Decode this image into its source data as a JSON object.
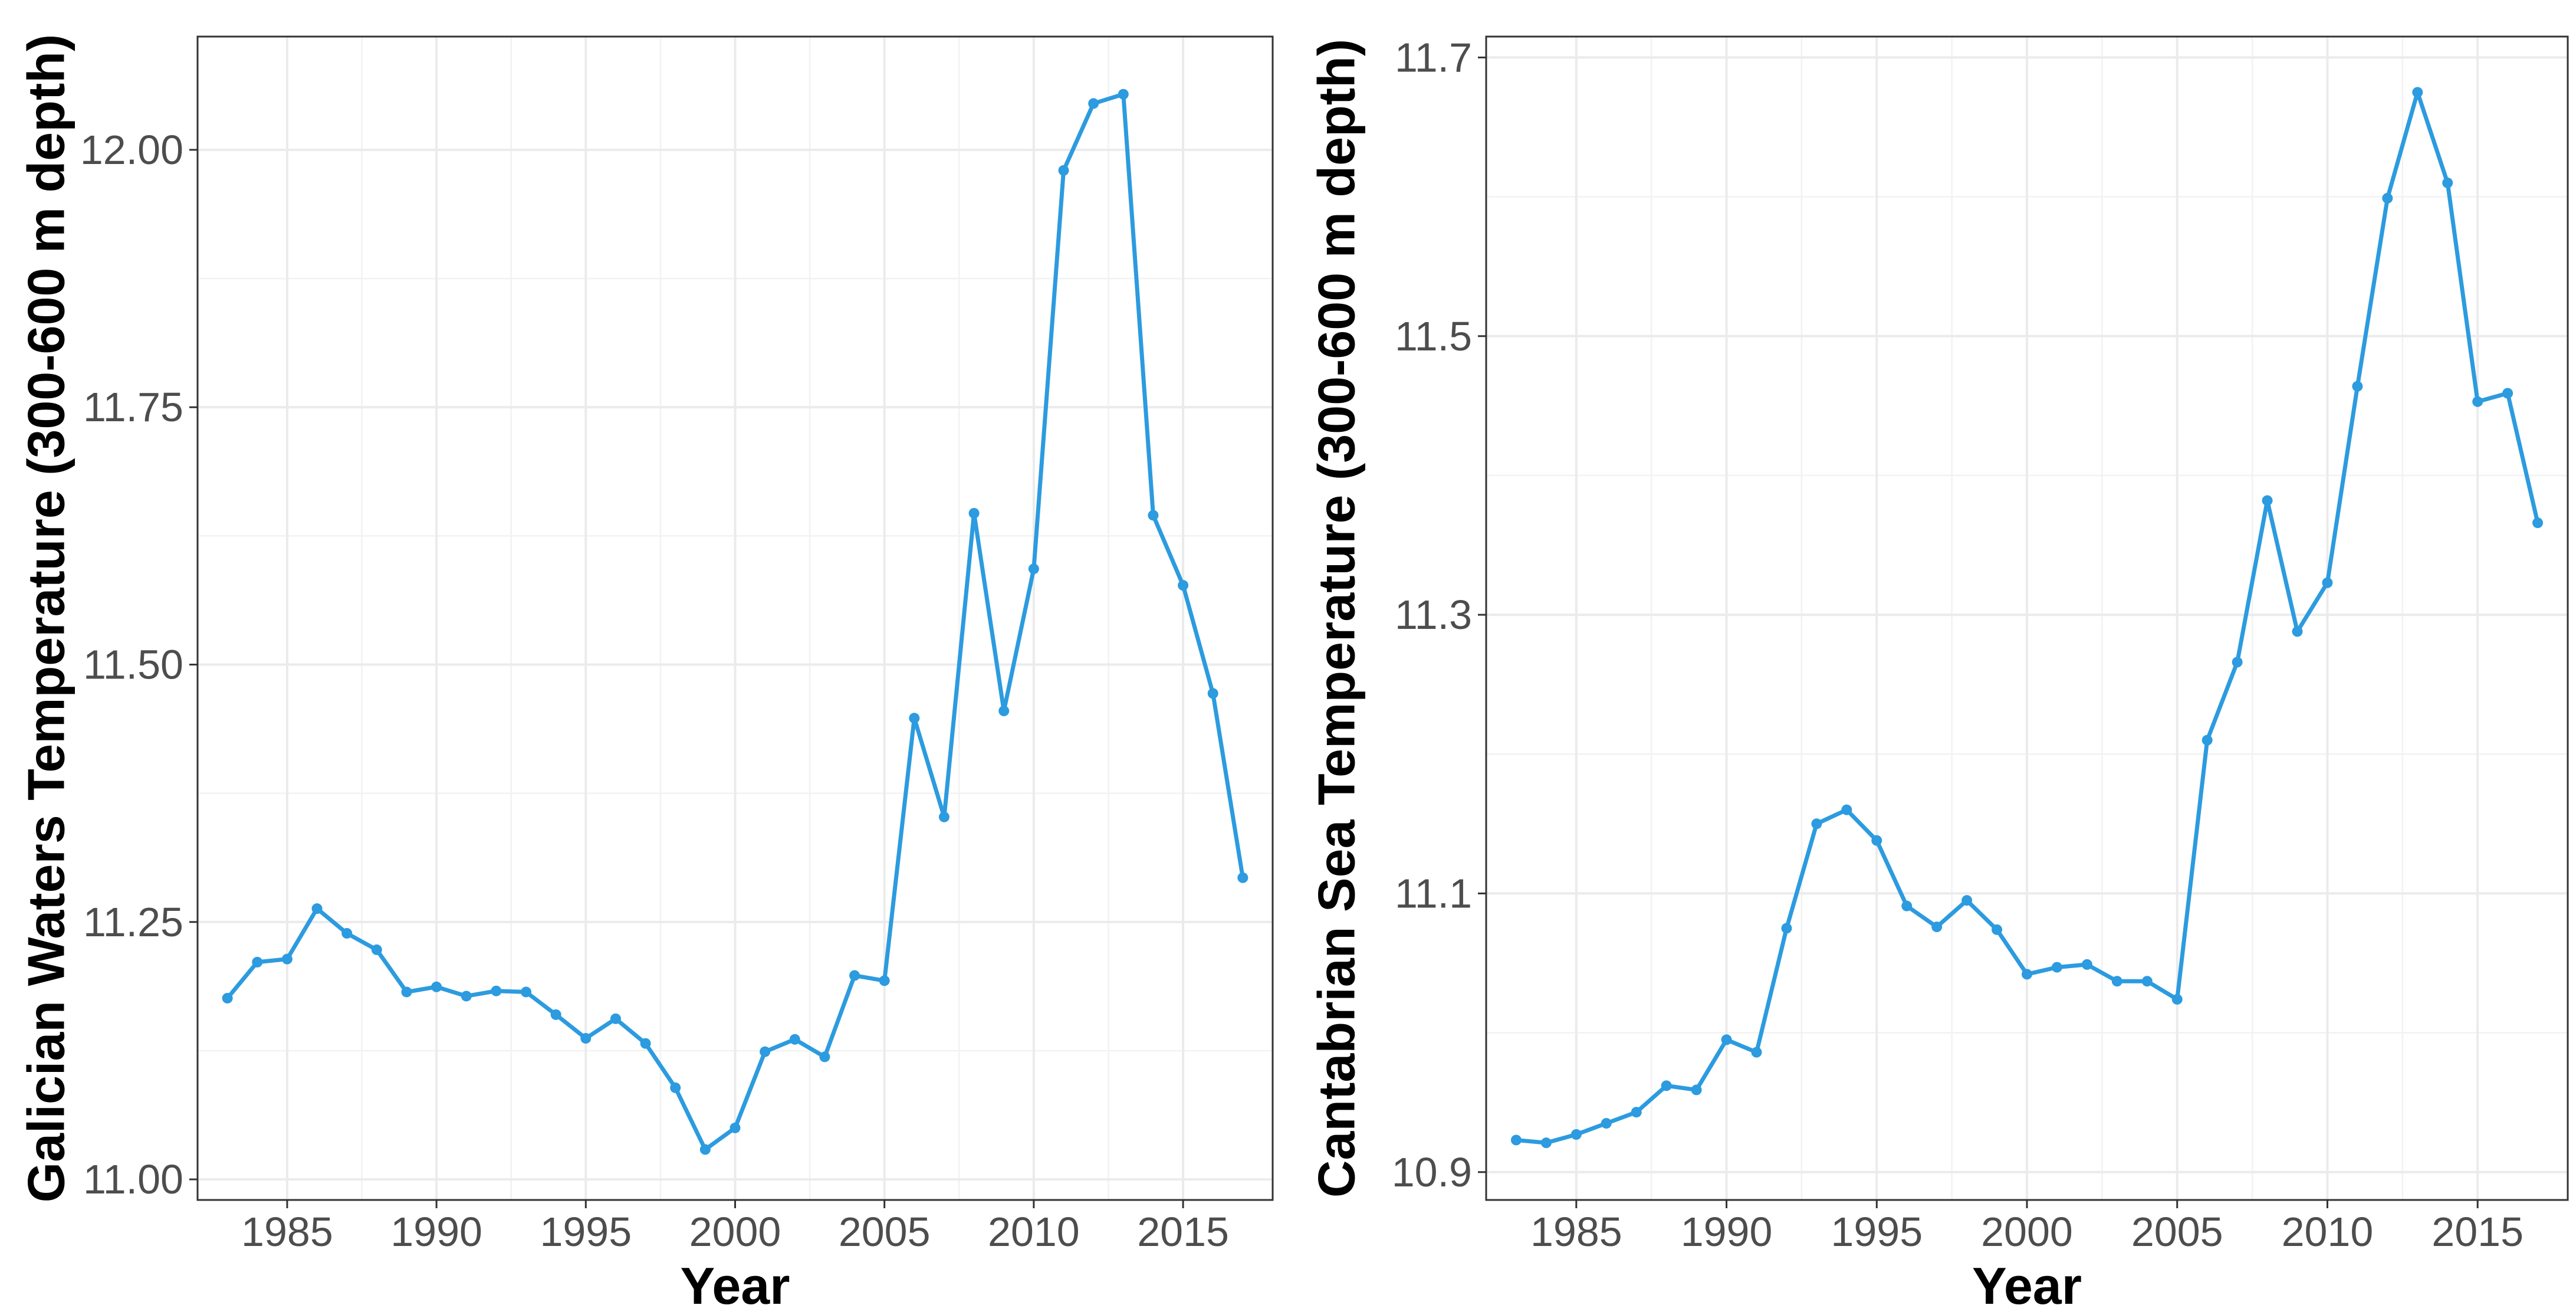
{
  "chart_data": [
    {
      "type": "line",
      "xlabel": "Year",
      "ylabel": "Galician Waters Temperature (300-600 m depth)",
      "xlim": [
        1982,
        2018
      ],
      "ylim": [
        10.98,
        12.11
      ],
      "x_ticks": [
        1985,
        1990,
        1995,
        2000,
        2005,
        2010,
        2015
      ],
      "y_ticks": [
        11.0,
        11.25,
        11.5,
        11.75,
        12.0
      ],
      "y_tick_labels": [
        "11.00",
        "11.25",
        "11.50",
        "11.75",
        "12.00"
      ],
      "grid": true,
      "line_color": "#2C9BDF",
      "x": [
        1983,
        1984,
        1985,
        1986,
        1987,
        1988,
        1989,
        1990,
        1991,
        1992,
        1993,
        1994,
        1995,
        1996,
        1997,
        1998,
        1999,
        2000,
        2001,
        2002,
        2003,
        2004,
        2005,
        2006,
        2007,
        2008,
        2009,
        2010,
        2011,
        2012,
        2013,
        2014,
        2015,
        2016,
        2017
      ],
      "y": [
        11.176,
        11.211,
        11.214,
        11.263,
        11.239,
        11.223,
        11.182,
        11.187,
        11.178,
        11.183,
        11.182,
        11.16,
        11.137,
        11.156,
        11.132,
        11.089,
        11.029,
        11.05,
        11.124,
        11.136,
        11.119,
        11.198,
        11.193,
        11.448,
        11.352,
        11.647,
        11.455,
        11.593,
        11.98,
        12.045,
        12.054,
        11.645,
        11.577,
        11.472,
        11.293
      ]
    },
    {
      "type": "line",
      "xlabel": "Year",
      "ylabel": "Cantabrian Sea Temperature (300-600 m depth)",
      "xlim": [
        1982,
        2018
      ],
      "ylim": [
        10.88,
        11.715
      ],
      "x_ticks": [
        1985,
        1990,
        1995,
        2000,
        2005,
        2010,
        2015
      ],
      "y_ticks": [
        10.9,
        11.1,
        11.3,
        11.5,
        11.7
      ],
      "y_tick_labels": [
        "10.9",
        "11.1",
        "11.3",
        "11.5",
        "11.7"
      ],
      "grid": true,
      "line_color": "#2C9BDF",
      "x": [
        1983,
        1984,
        1985,
        1986,
        1987,
        1988,
        1989,
        1990,
        1991,
        1992,
        1993,
        1994,
        1995,
        1996,
        1997,
        1998,
        1999,
        2000,
        2001,
        2002,
        2003,
        2004,
        2005,
        2006,
        2007,
        2008,
        2009,
        2010,
        2011,
        2012,
        2013,
        2014,
        2015,
        2016,
        2017
      ],
      "y": [
        10.923,
        10.921,
        10.927,
        10.935,
        10.943,
        10.962,
        10.959,
        10.995,
        10.986,
        11.075,
        11.15,
        11.16,
        11.138,
        11.091,
        11.076,
        11.095,
        11.074,
        11.042,
        11.047,
        11.049,
        11.037,
        11.037,
        11.024,
        11.21,
        11.266,
        11.382,
        11.288,
        11.323,
        11.464,
        11.599,
        11.675,
        11.61,
        11.453,
        11.459,
        11.366
      ]
    }
  ]
}
